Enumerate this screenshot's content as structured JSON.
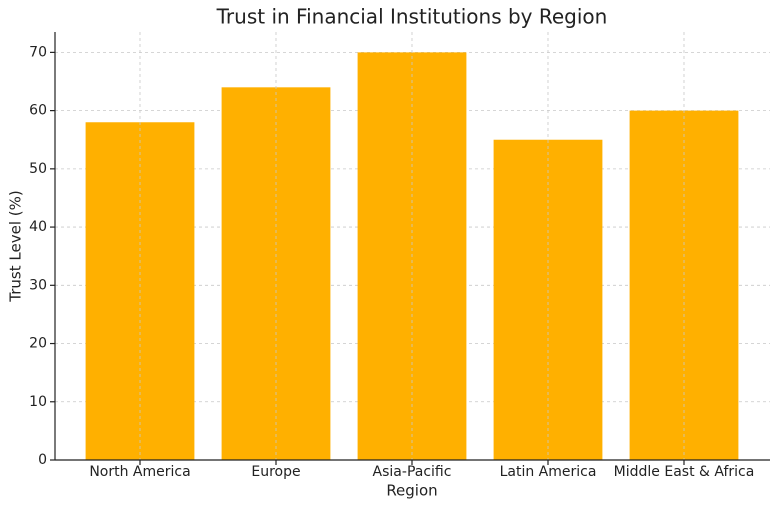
{
  "chart_data": {
    "type": "bar",
    "title": "Trust in Financial Institutions by Region",
    "xlabel": "Region",
    "ylabel": "Trust Level (%)",
    "categories": [
      "North America",
      "Europe",
      "Asia-Pacific",
      "Latin America",
      "Middle East & Africa"
    ],
    "values": [
      58,
      64,
      70,
      55,
      60
    ],
    "color": "#ffb000",
    "ylim": [
      0,
      73.5
    ],
    "yticks": [
      0,
      10,
      20,
      30,
      40,
      50,
      60,
      70
    ],
    "grid": true
  }
}
